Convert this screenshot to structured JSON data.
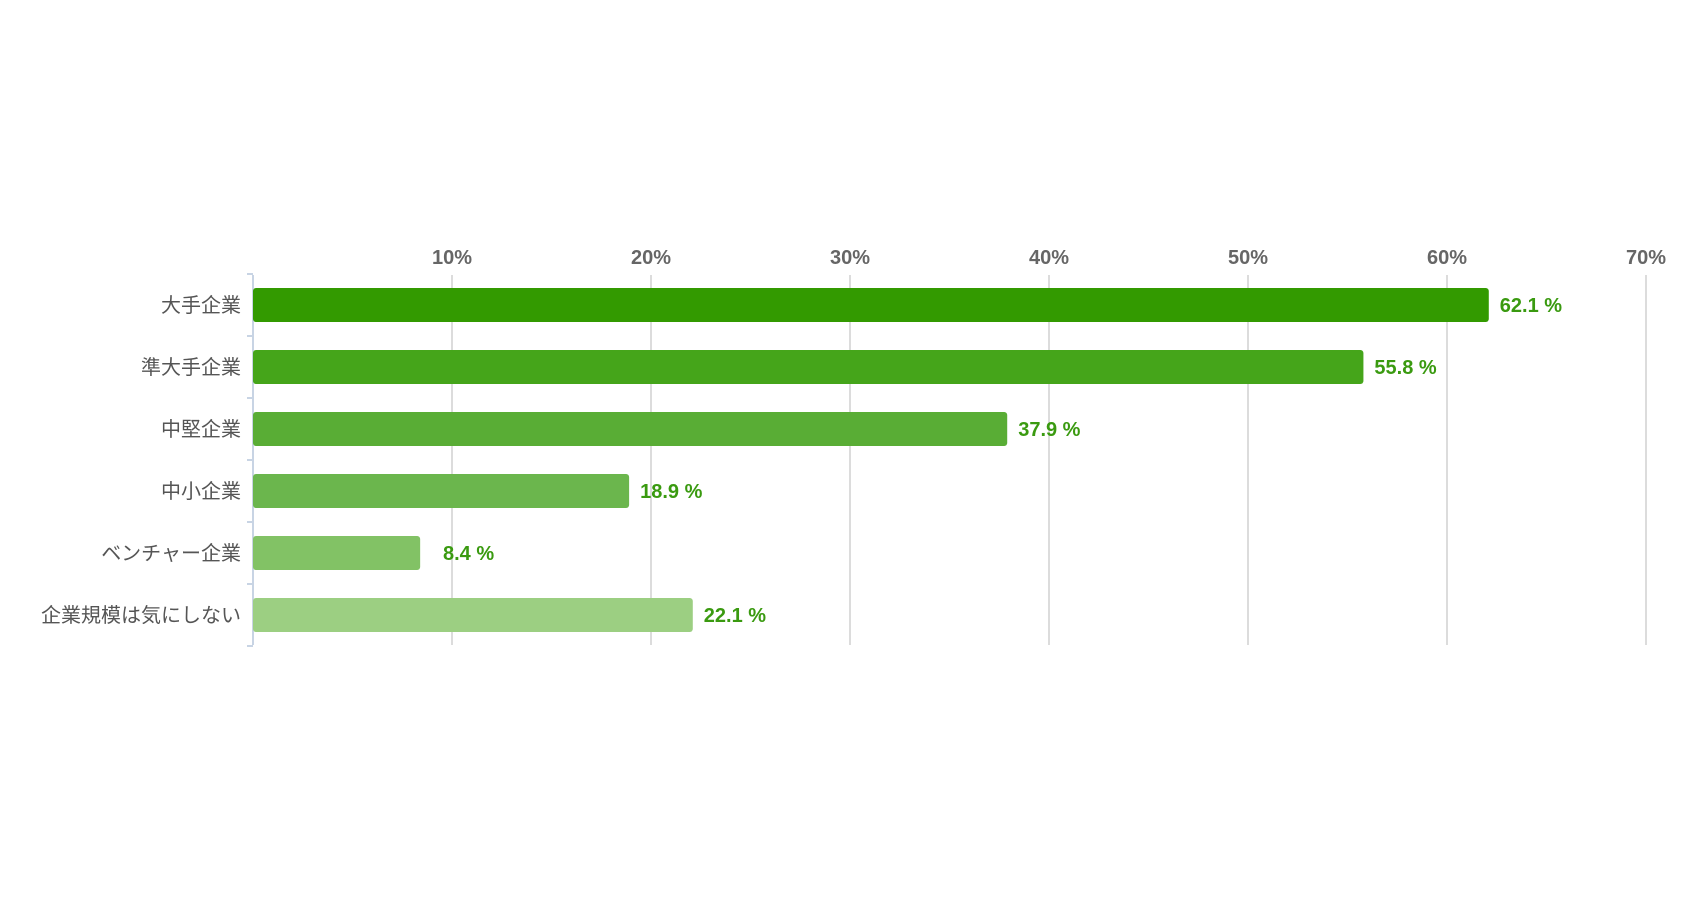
{
  "chart_data": {
    "type": "bar",
    "orientation": "horizontal",
    "categories": [
      "大手企業",
      "準大手企業",
      "中堅企業",
      "中小企業",
      "ベンチャー企業",
      "企業規模は気にしない"
    ],
    "values": [
      62.1,
      55.8,
      37.9,
      18.9,
      8.4,
      22.1
    ],
    "value_labels": [
      "62.1 %",
      "55.8 %",
      "37.9 %",
      "18.9 %",
      "8.4 %",
      "22.1 %"
    ],
    "x_ticks": [
      10,
      20,
      30,
      40,
      50,
      60,
      70
    ],
    "x_tick_labels": [
      "10%",
      "20%",
      "30%",
      "40%",
      "50%",
      "60%",
      "70%"
    ],
    "xlim": [
      0,
      70
    ],
    "x_axis_position": "top",
    "grid": true,
    "bar_colors": [
      "#339a00",
      "#45a51a",
      "#59ad35",
      "#6bb64d",
      "#82c265",
      "#9ccf82"
    ],
    "value_label_color": "#3a9a10"
  }
}
